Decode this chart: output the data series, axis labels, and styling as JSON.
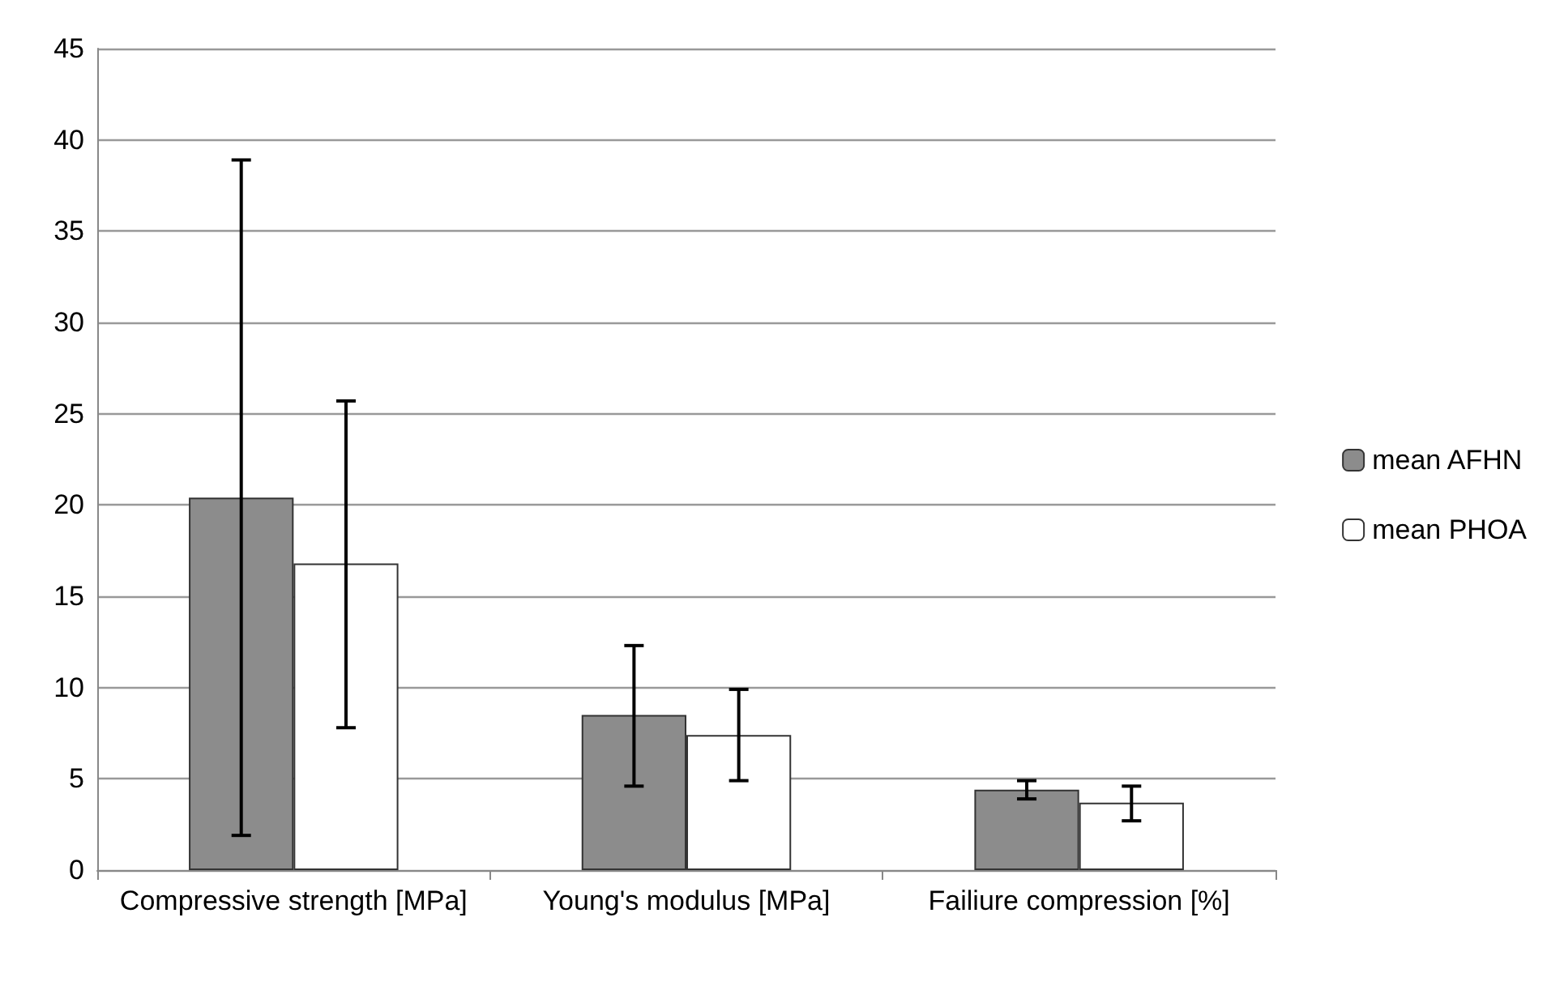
{
  "chart_data": {
    "type": "bar",
    "categories": [
      "Compressive strength [MPa]",
      "Young's modulus [MPa]",
      "Failiure compression [%]"
    ],
    "series": [
      {
        "name": "mean AFHN",
        "color": "#8c8c8c",
        "values": [
          20.4,
          8.5,
          4.4
        ],
        "errors": [
          [
            1.9,
            38.9
          ],
          [
            4.6,
            12.3
          ],
          [
            3.9,
            4.9
          ]
        ]
      },
      {
        "name": "mean PHOA",
        "color": "#ffffff",
        "values": [
          16.8,
          7.4,
          3.7
        ],
        "errors": [
          [
            7.8,
            25.7
          ],
          [
            4.9,
            9.9
          ],
          [
            2.7,
            4.6
          ]
        ]
      }
    ],
    "ylim": [
      0,
      45
    ],
    "yticks": [
      0,
      5,
      10,
      15,
      20,
      25,
      30,
      35,
      40,
      45
    ],
    "grid": "y",
    "legend": "right"
  }
}
